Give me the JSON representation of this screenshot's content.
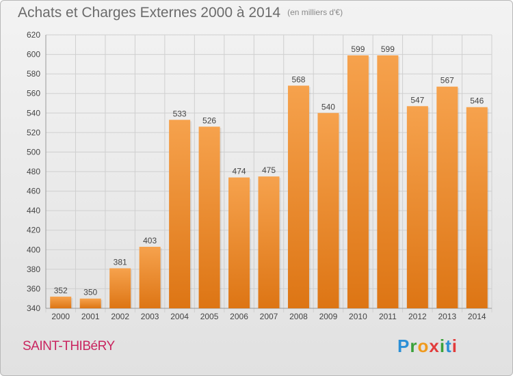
{
  "title": "Achats et Charges Externes 2000 à 2014",
  "unit": "(en milliers d'€)",
  "commune": "SAINT-THIBéRY",
  "logo": {
    "letters": [
      "P",
      "r",
      "o",
      "x",
      "i",
      "t",
      "i"
    ]
  },
  "colors": {
    "bar_light": "#f6a24d",
    "bar_dark": "#dd7514",
    "grid": "#cfcfcf",
    "axis_text": "#444444"
  },
  "chart_data": {
    "type": "bar",
    "categories": [
      "2000",
      "2001",
      "2002",
      "2003",
      "2004",
      "2005",
      "2006",
      "2007",
      "2008",
      "2009",
      "2010",
      "2011",
      "2012",
      "2013",
      "2014"
    ],
    "values": [
      352,
      350,
      381,
      403,
      533,
      526,
      474,
      475,
      568,
      540,
      599,
      599,
      547,
      567,
      546
    ],
    "ylim": [
      340,
      620
    ],
    "yticks": [
      340,
      360,
      380,
      400,
      420,
      440,
      460,
      480,
      500,
      520,
      540,
      560,
      580,
      600,
      620
    ],
    "grid": true
  }
}
